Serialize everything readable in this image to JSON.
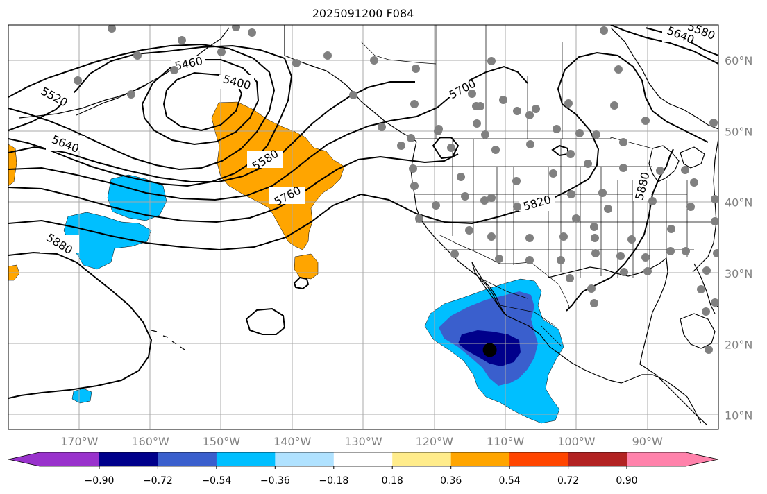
{
  "title": "2025091200 F084",
  "map": {
    "lon_range": [
      -180,
      -80
    ],
    "lat_range": [
      8,
      65
    ],
    "lon_ticks": [
      {
        "value": -170,
        "label": "170°W"
      },
      {
        "value": -160,
        "label": "160°W"
      },
      {
        "value": -150,
        "label": "150°W"
      },
      {
        "value": -140,
        "label": "140°W"
      },
      {
        "value": -130,
        "label": "130°W"
      },
      {
        "value": -120,
        "label": "120°W"
      },
      {
        "value": -110,
        "label": "110°W"
      },
      {
        "value": -100,
        "label": "100°W"
      },
      {
        "value": -90,
        "label": "90°W"
      }
    ],
    "lat_ticks": [
      {
        "value": 60,
        "label": "60°N"
      },
      {
        "value": 50,
        "label": "50°N"
      },
      {
        "value": 40,
        "label": "40°N"
      },
      {
        "value": 30,
        "label": "30°N"
      },
      {
        "value": 20,
        "label": "20°N"
      },
      {
        "value": 10,
        "label": "10°N"
      }
    ],
    "contour_labels": [
      "5460",
      "5400",
      "5520",
      "5640",
      "5580",
      "5760",
      "5880",
      "5700",
      "5820",
      "5880",
      "5640",
      "5580"
    ],
    "storm_center": {
      "lon": -112.2,
      "lat": 19.2
    }
  },
  "colorbar": {
    "ticks": [
      "−0.90",
      "−0.72",
      "−0.54",
      "−0.36",
      "−0.18",
      "0.18",
      "0.36",
      "0.54",
      "0.72",
      "0.90"
    ],
    "colors": [
      "#9932cc",
      "#00008b",
      "#3a5fcd",
      "#00bfff",
      "#b0e2ff",
      "#ffffff",
      "#ffec8b",
      "#ffa500",
      "#ff4500",
      "#b22222",
      "#ff82ab"
    ],
    "under_color": "#9932cc",
    "over_color": "#ff82ab"
  }
}
